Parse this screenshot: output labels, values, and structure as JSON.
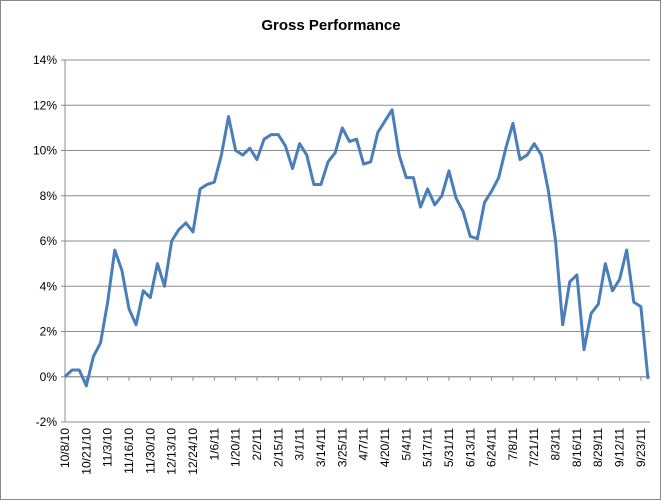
{
  "chart_data": {
    "type": "line",
    "title": "Gross Performance",
    "categories": [
      "10/8/10",
      null,
      null,
      "10/21/10",
      null,
      null,
      "11/3/10",
      null,
      null,
      "11/16/10",
      null,
      null,
      "11/30/10",
      null,
      null,
      "12/13/10",
      null,
      null,
      "12/24/10",
      null,
      null,
      "1/6/11",
      null,
      null,
      "1/20/11",
      null,
      null,
      "2/2/11",
      null,
      null,
      "2/15/11",
      null,
      null,
      "3/1/11",
      null,
      null,
      "3/14/11",
      null,
      null,
      "3/25/11",
      null,
      null,
      "4/7/11",
      null,
      null,
      "4/20/11",
      null,
      null,
      "5/4/11",
      null,
      null,
      "5/17/11",
      null,
      null,
      "5/31/11",
      null,
      null,
      "6/13/11",
      null,
      null,
      "6/24/11",
      null,
      null,
      "7/8/11",
      null,
      null,
      "7/21/11",
      null,
      null,
      "8/3/11",
      null,
      null,
      "8/16/11",
      null,
      null,
      "8/29/11",
      null,
      null,
      "9/12/11",
      null,
      null,
      "9/23/11",
      null
    ],
    "values": [
      0,
      0.3,
      0.3,
      -0.4,
      0.9,
      1.5,
      3.3,
      5.6,
      4.7,
      3,
      2.3,
      3.8,
      3.5,
      5,
      4,
      6,
      6.5,
      6.8,
      6.4,
      8.3,
      8.5,
      8.6,
      9.8,
      11.5,
      10,
      9.8,
      10.1,
      9.6,
      10.5,
      10.7,
      10.7,
      10.2,
      9.2,
      10.3,
      9.8,
      8.5,
      8.5,
      9.5,
      9.9,
      11,
      10.4,
      10.5,
      9.4,
      9.5,
      10.8,
      11.3,
      11.8,
      9.8,
      8.8,
      8.8,
      7.5,
      8.3,
      7.6,
      8,
      9.1,
      7.9,
      7.3,
      6.2,
      6.1,
      7.7,
      8.2,
      8.8,
      10.1,
      11.2,
      9.6,
      9.8,
      10.3,
      9.8,
      8.2,
      6,
      2.3,
      4.2,
      4.5,
      1.2,
      2.8,
      3.2,
      5,
      3.8,
      4.3,
      5.6,
      3.3,
      3.1,
      -0.1
    ],
    "color": "#4a7ebb",
    "ylim": [
      -2,
      14
    ],
    "yticks": [
      {
        "value": -2,
        "label": "-2%"
      },
      {
        "value": 0,
        "label": "0%"
      },
      {
        "value": 2,
        "label": "2%"
      },
      {
        "value": 4,
        "label": "4%"
      },
      {
        "value": 6,
        "label": "6%"
      },
      {
        "value": 8,
        "label": "8%"
      },
      {
        "value": 10,
        "label": "10%"
      },
      {
        "value": 12,
        "label": "12%"
      },
      {
        "value": 14,
        "label": "14%"
      }
    ],
    "grid": true
  }
}
